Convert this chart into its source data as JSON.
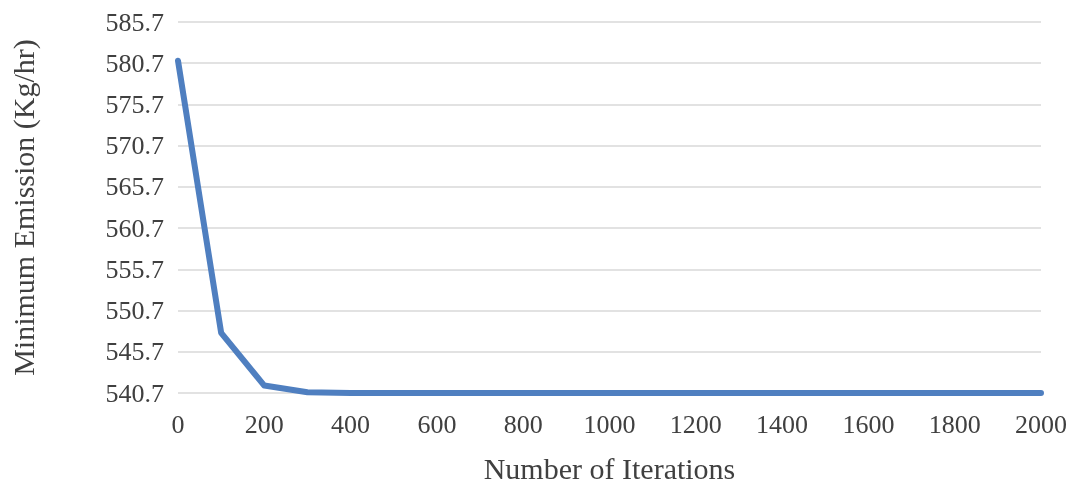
{
  "chart_data": {
    "type": "line",
    "xlabel": "Number of Iterations",
    "ylabel": "Minimum Emission (Kg/hr)",
    "x": [
      0,
      100,
      200,
      300,
      400,
      500,
      600,
      700,
      800,
      900,
      1000,
      1100,
      1200,
      1300,
      1400,
      1500,
      1600,
      1700,
      1800,
      1900,
      2000
    ],
    "series": [
      {
        "color": "#4f7fc0",
        "values": [
          581,
          548,
          541.6,
          540.8,
          540.7,
          540.7,
          540.7,
          540.7,
          540.7,
          540.7,
          540.7,
          540.7,
          540.7,
          540.7,
          540.7,
          540.7,
          540.7,
          540.7,
          540.7,
          540.7,
          540.7
        ]
      }
    ],
    "xlim": [
      0,
      2000
    ],
    "xticks": [
      0,
      200,
      400,
      600,
      800,
      1000,
      1200,
      1400,
      1600,
      1800,
      2000
    ],
    "ylim": [
      540.7,
      585.7
    ],
    "yticks": [
      540.7,
      545.7,
      550.7,
      555.7,
      560.7,
      565.7,
      570.7,
      575.7,
      580.7,
      585.7
    ],
    "grid": "y",
    "marker": "none",
    "line_style": "solid"
  }
}
